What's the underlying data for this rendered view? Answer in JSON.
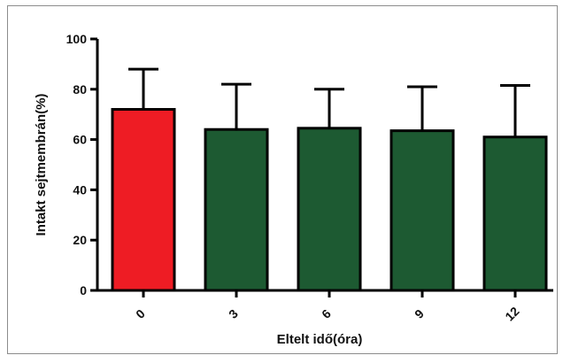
{
  "chart_data": {
    "type": "bar",
    "categories": [
      "0",
      "3",
      "6",
      "9",
      "12"
    ],
    "values": [
      72,
      64,
      64.5,
      63.5,
      61
    ],
    "errors": [
      16,
      18,
      15.5,
      17.5,
      20.5
    ],
    "colors": [
      "#ee1c24",
      "#1d5a32",
      "#1d5a32",
      "#1d5a32",
      "#1d5a32"
    ],
    "xlabel": "Eltelt idő(óra)",
    "ylabel": "Intakt sejtmembrán(%)",
    "ylim": [
      0,
      100
    ],
    "yticks": [
      0,
      20,
      40,
      60,
      80,
      100
    ],
    "ytick_labels": [
      "0",
      "20",
      "40",
      "60",
      "80",
      "100"
    ],
    "grid": false,
    "legend": "none"
  }
}
